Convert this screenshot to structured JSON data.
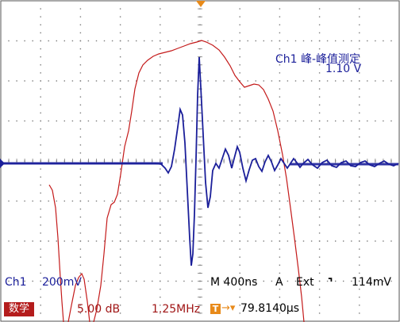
{
  "measurement": {
    "label": "Ch1 峰-峰值测定",
    "value": "1.10 V"
  },
  "status_bar": {
    "channel": "Ch1",
    "channel_scale": "200mV",
    "timebase": "M 400ns",
    "trigger_mode": "A",
    "trigger_source": "Ext",
    "trigger_slope_icon": "falling-edge-icon",
    "trigger_slope_glyph": "⌝",
    "trigger_level": "114mV"
  },
  "math_bar": {
    "badge": "数学",
    "scale": "5.00 dB",
    "frequency": "1.25MHz",
    "trigger_badge": "T",
    "trigger_arrow": "→▾",
    "delay": "79.8140µs"
  },
  "colors": {
    "channel1": "#1b1f9a",
    "math": "#c41a1a",
    "trigger": "#e88a1a",
    "grid": "#7a7a7a"
  },
  "traces": {
    "channel1_baseline_volts": 0,
    "channel1_peak_to_peak_volts": 1.1
  }
}
